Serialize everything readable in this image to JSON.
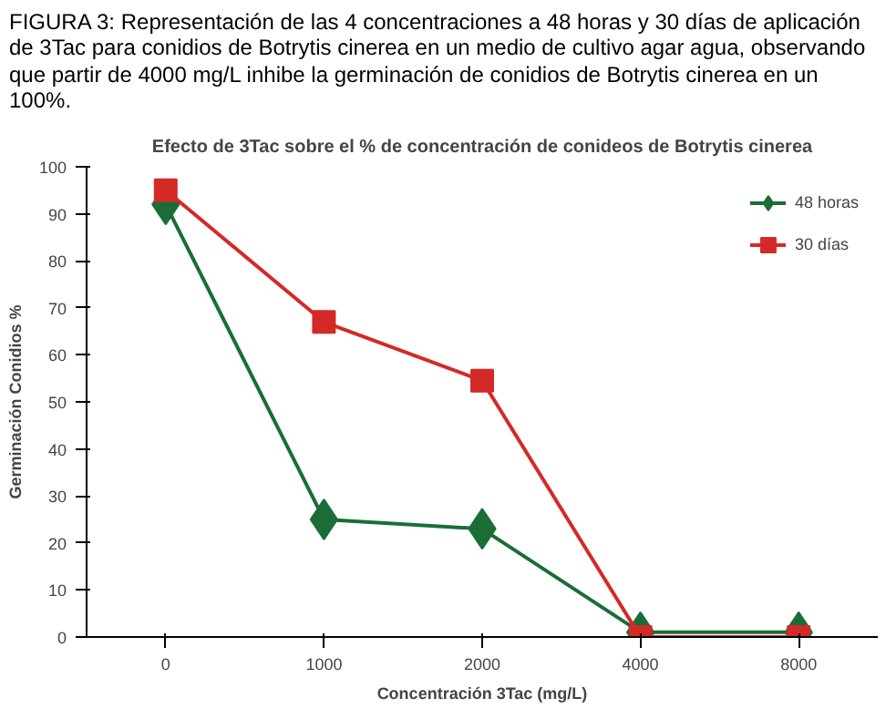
{
  "chart_data": {
    "type": "line",
    "title": "Efecto de 3Tac sobre el % de concentración de conideos de Botrytis cinerea",
    "xlabel": "Concentración 3Tac (mg/L)",
    "ylabel": "Germinación Conidios %",
    "annotations": [
      "FIGURA 3: Representación de las 4 concentraciones a 48 horas y 30 días de aplicación de 3Tac para conidios de Botrytis cinerea en un medio de cultivo agar agua, observando que partir de 4000 mg/L inhibe la germinación de conidios de Botrytis cinerea en un 100%."
    ],
    "categories": [
      "0",
      "1000",
      "2000",
      "4000",
      "8000"
    ],
    "series": [
      {
        "name": "48 horas",
        "color": "#1a6e35",
        "values": [
          92,
          25,
          23,
          1,
          1
        ],
        "marker": "diamond"
      },
      {
        "name": "30 días",
        "color": "#d32a27",
        "values": [
          95,
          67,
          54.5,
          0,
          0
        ],
        "marker": "square"
      }
    ],
    "ylim": [
      0,
      100
    ],
    "yticks": [
      0,
      10,
      20,
      30,
      40,
      50,
      60,
      70,
      80,
      90,
      100
    ],
    "grid": false,
    "legend": "top right",
    "line_style": "solid"
  }
}
